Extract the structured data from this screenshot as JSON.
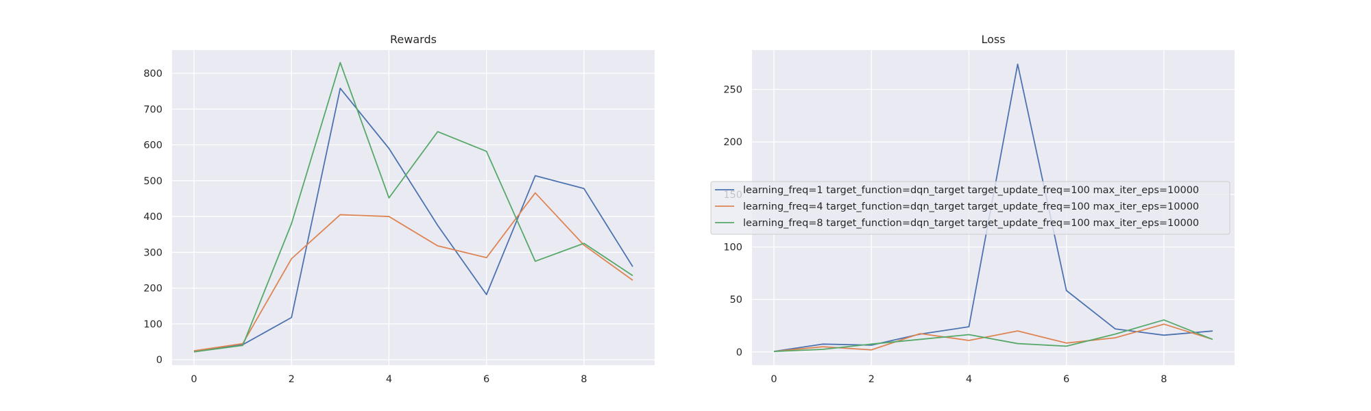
{
  "chart_data": [
    {
      "type": "line",
      "title": "Rewards",
      "xlabel": "",
      "ylabel": "",
      "x": [
        0,
        1,
        2,
        3,
        4,
        5,
        6,
        7,
        8,
        9
      ],
      "xlim": [
        -0.45,
        9.45
      ],
      "ylim": [
        -15,
        865
      ],
      "xticks": [
        0,
        2,
        4,
        6,
        8
      ],
      "yticks": [
        0,
        100,
        200,
        300,
        400,
        500,
        600,
        700,
        800
      ],
      "grid": true,
      "legend": false,
      "series": [
        {
          "color": "#4c72b0",
          "values": [
            22,
            42,
            118,
            758,
            590,
            375,
            182,
            514,
            478,
            260
          ]
        },
        {
          "color": "#dd8452",
          "values": [
            25,
            45,
            282,
            405,
            400,
            318,
            285,
            466,
            320,
            222
          ]
        },
        {
          "color": "#55a868",
          "values": [
            22,
            40,
            380,
            830,
            452,
            637,
            582,
            275,
            325,
            235
          ]
        }
      ]
    },
    {
      "type": "line",
      "title": "Loss",
      "xlabel": "",
      "ylabel": "",
      "x": [
        0,
        1,
        2,
        3,
        4,
        5,
        6,
        7,
        8,
        9
      ],
      "xlim": [
        -0.45,
        9.45
      ],
      "ylim": [
        -12.5,
        287.5
      ],
      "xticks": [
        0,
        2,
        4,
        6,
        8
      ],
      "yticks": [
        0,
        50,
        100,
        150,
        200,
        250
      ],
      "grid": true,
      "legend": true,
      "legend_placement": "center-left",
      "series": [
        {
          "name": "learning_freq=1 target_function=dqn_target target_update_freq=100 max_iter_eps=10000",
          "color": "#4c72b0",
          "values": [
            0.5,
            7.5,
            6.5,
            17,
            24,
            274,
            58.5,
            22,
            16,
            20
          ]
        },
        {
          "name": "learning_freq=4 target_function=dqn_target target_update_freq=100 max_iter_eps=10000",
          "color": "#dd8452",
          "values": [
            0.5,
            5,
            2,
            17.5,
            11,
            20,
            8.5,
            13.5,
            26.5,
            12
          ]
        },
        {
          "name": "learning_freq=8 target_function=dqn_target target_update_freq=100 max_iter_eps=10000",
          "color": "#55a868",
          "values": [
            0.5,
            2.5,
            7.5,
            12,
            16.5,
            8,
            5.5,
            17,
            30.5,
            12
          ]
        }
      ]
    }
  ]
}
